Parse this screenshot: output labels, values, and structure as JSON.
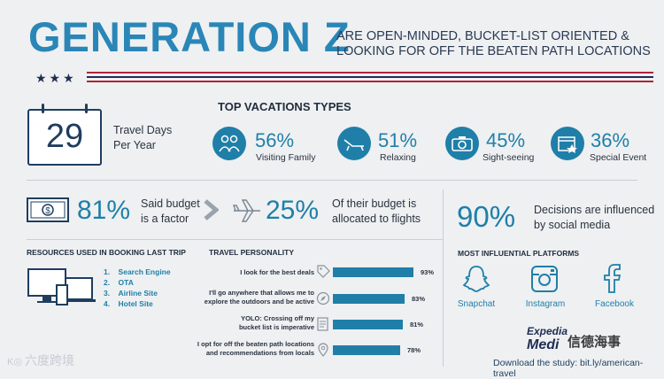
{
  "header": {
    "title": "GENERATION Z",
    "subtitle_line1": "ARE OPEN-MINDED, BUCKET-LIST ORIENTED &",
    "subtitle_line2": "LOOKING FOR OFF THE BEATEN PATH LOCATIONS",
    "stars": "★★★"
  },
  "travel_days": {
    "value": "29",
    "label_line1": "Travel Days",
    "label_line2": "Per Year"
  },
  "vacation_types": {
    "heading": "TOP VACATIONS TYPES",
    "items": [
      {
        "pct": "56%",
        "label": "Visiting Family",
        "icon": "family-icon"
      },
      {
        "pct": "51%",
        "label": "Relaxing",
        "icon": "lounge-chair-icon"
      },
      {
        "pct": "45%",
        "label": "Sight-seeing",
        "icon": "camera-icon"
      },
      {
        "pct": "36%",
        "label": "Special Event",
        "icon": "calendar-star-icon"
      }
    ]
  },
  "budget": {
    "pct1": "81%",
    "label1_line1": "Said budget",
    "label1_line2": "is a factor",
    "pct2": "25%",
    "label2_line1": "Of their budget is",
    "label2_line2": "allocated to flights"
  },
  "social": {
    "pct": "90%",
    "label_line1": "Decisions are influenced",
    "label_line2": "by social media"
  },
  "resources": {
    "heading": "RESOURCES USED IN BOOKING LAST TRIP",
    "items": [
      "Search Engine",
      "OTA",
      "Airline Site",
      "Hotel Site"
    ]
  },
  "personality": {
    "heading": "TRAVEL PERSONALITY",
    "rows": [
      {
        "label_line1": "I look for the best deals",
        "label_line2": "",
        "pct": 93,
        "pct_text": "93%",
        "icon": "tag-icon"
      },
      {
        "label_line1": "I'll go anywhere that allows me to",
        "label_line2": "explore the outdoors and be active",
        "pct": 83,
        "pct_text": "83%",
        "icon": "compass-icon"
      },
      {
        "label_line1": "YOLO: Crossing off my",
        "label_line2": "bucket list is imperative",
        "pct": 81,
        "pct_text": "81%",
        "icon": "checklist-icon"
      },
      {
        "label_line1": "I opt for off the beaten path locations",
        "label_line2": "and recommendations from locals",
        "pct": 78,
        "pct_text": "78%",
        "icon": "map-pin-icon"
      }
    ]
  },
  "platforms": {
    "heading": "MOST INFLUENTIAL PLATFORMS",
    "items": [
      {
        "label": "Snapchat",
        "icon": "snapchat-icon"
      },
      {
        "label": "Instagram",
        "icon": "instagram-icon"
      },
      {
        "label": "Facebook",
        "icon": "facebook-icon"
      }
    ]
  },
  "footer": {
    "download": "Download the study: bit.ly/american-travel",
    "brand": "Expedia",
    "brand2": "Medi",
    "watermark_right": "信德海事",
    "watermark_left": "六度跨境"
  },
  "colors": {
    "accent": "#1f7fa8",
    "navy": "#1f2d52",
    "red": "#b22234"
  }
}
